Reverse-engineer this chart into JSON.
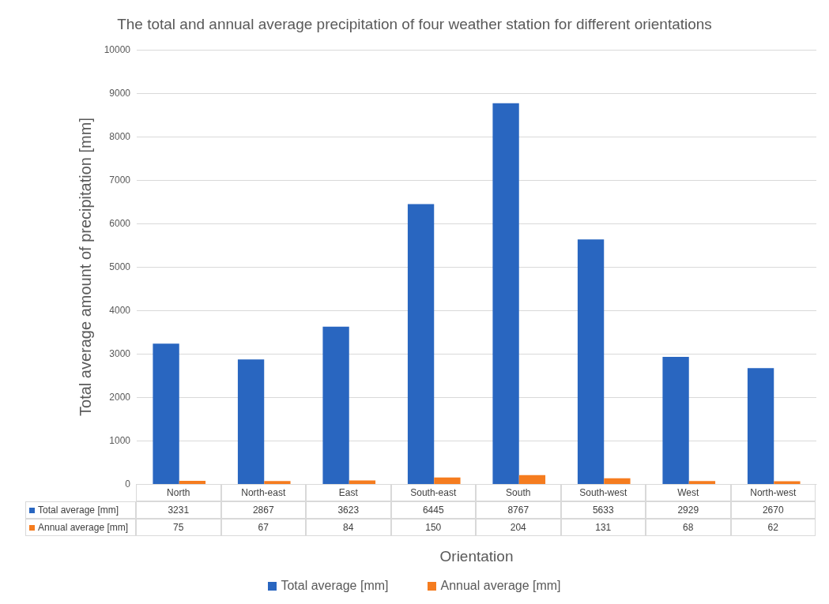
{
  "chart_data": {
    "type": "bar",
    "title": "The total and annual average precipitation of four weather station for different orientations",
    "xlabel": "Orientation",
    "ylabel": "Total average amount of precipitation [mm]",
    "categories": [
      "North",
      "North-east",
      "East",
      "South-east",
      "South",
      "South-west",
      "West",
      "North-west"
    ],
    "series": [
      {
        "name": "Total average [mm]",
        "color": "#2966c0",
        "values": [
          3231,
          2867,
          3623,
          6445,
          8767,
          5633,
          2929,
          2670
        ]
      },
      {
        "name": "Annual average [mm]",
        "color": "#f57c1f",
        "values": [
          75,
          67,
          84,
          150,
          204,
          131,
          68,
          62
        ]
      }
    ],
    "ylim": [
      0,
      10000
    ],
    "yticks": [
      0,
      1000,
      2000,
      3000,
      4000,
      5000,
      6000,
      7000,
      8000,
      9000,
      10000
    ],
    "grid": "y",
    "legend": "bottom",
    "data_labels": true
  }
}
